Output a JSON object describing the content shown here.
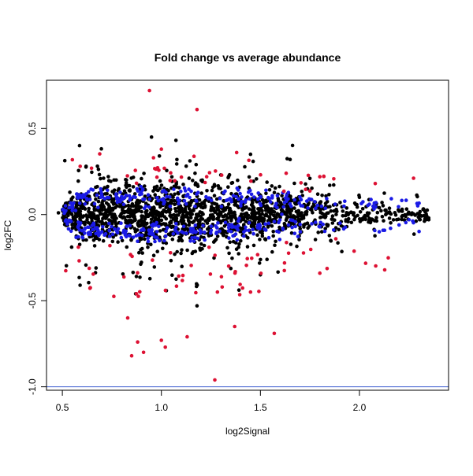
{
  "chart_data": {
    "type": "scatter",
    "title": "Fold change vs average abundance",
    "xlabel": "log2Signal",
    "ylabel": "log2FC",
    "xlim": [
      0.42,
      2.45
    ],
    "ylim": [
      -1.02,
      0.78
    ],
    "xticks": [
      0.5,
      1.0,
      1.5,
      2.0
    ],
    "xtick_labels": [
      "0.5",
      "1.0",
      "1.5",
      "2.0"
    ],
    "yticks": [
      -1.0,
      -0.5,
      0.0,
      0.5
    ],
    "ytick_labels": [
      "-1.0",
      "-0.5",
      "0.0",
      "0.5"
    ],
    "grid": false,
    "legend": "none",
    "hline": {
      "y": -1.0,
      "color": "#3b5bd0"
    },
    "colors": {
      "all": "#000000",
      "de_strong": "#dd1133",
      "de_mild": "#1a1ae6"
    },
    "series": [
      {
        "color_key": "all",
        "count_drawn": 1700,
        "points": [
          [
            0.48,
            0.01
          ],
          [
            0.62,
            0.28
          ],
          [
            0.67,
            -0.31
          ],
          [
            0.87,
            -0.46
          ],
          [
            0.95,
            0.45
          ],
          [
            0.99,
            0.34
          ],
          [
            1.17,
            0.24
          ],
          [
            1.18,
            -0.53
          ],
          [
            1.3,
            0.23
          ],
          [
            1.45,
            0.35
          ],
          [
            1.5,
            -0.35
          ],
          [
            1.65,
            0.32
          ],
          [
            1.75,
            0.21
          ],
          [
            1.85,
            0.17
          ],
          [
            2.0,
            0.1
          ],
          [
            2.1,
            0.04
          ],
          [
            2.2,
            0.02
          ],
          [
            2.35,
            -0.03
          ]
        ]
      },
      {
        "color_key": "de_mild",
        "count_drawn": 420,
        "points": [
          [
            0.55,
            0.05
          ],
          [
            0.7,
            -0.1
          ],
          [
            0.9,
            0.12
          ],
          [
            1.2,
            -0.1
          ],
          [
            1.5,
            0.1
          ],
          [
            1.8,
            -0.07
          ],
          [
            2.05,
            0.06
          ],
          [
            2.1,
            -0.1
          ],
          [
            2.25,
            -0.03
          ]
        ]
      },
      {
        "color_key": "de_strong",
        "count_drawn": 90,
        "points": [
          [
            0.94,
            0.72
          ],
          [
            1.18,
            0.61
          ],
          [
            0.59,
            0.28
          ],
          [
            0.96,
            0.33
          ],
          [
            1.0,
            0.38
          ],
          [
            1.38,
            0.36
          ],
          [
            1.63,
            0.24
          ],
          [
            1.8,
            0.22
          ],
          [
            2.08,
            0.18
          ],
          [
            0.83,
            -0.6
          ],
          [
            0.85,
            -0.82
          ],
          [
            0.88,
            -0.74
          ],
          [
            0.91,
            -0.8
          ],
          [
            1.0,
            -0.73
          ],
          [
            1.02,
            -0.77
          ],
          [
            1.13,
            -0.71
          ],
          [
            1.27,
            -0.96
          ],
          [
            1.37,
            -0.65
          ],
          [
            1.57,
            -0.69
          ],
          [
            1.8,
            -0.34
          ],
          [
            1.45,
            -0.45
          ]
        ]
      }
    ]
  }
}
